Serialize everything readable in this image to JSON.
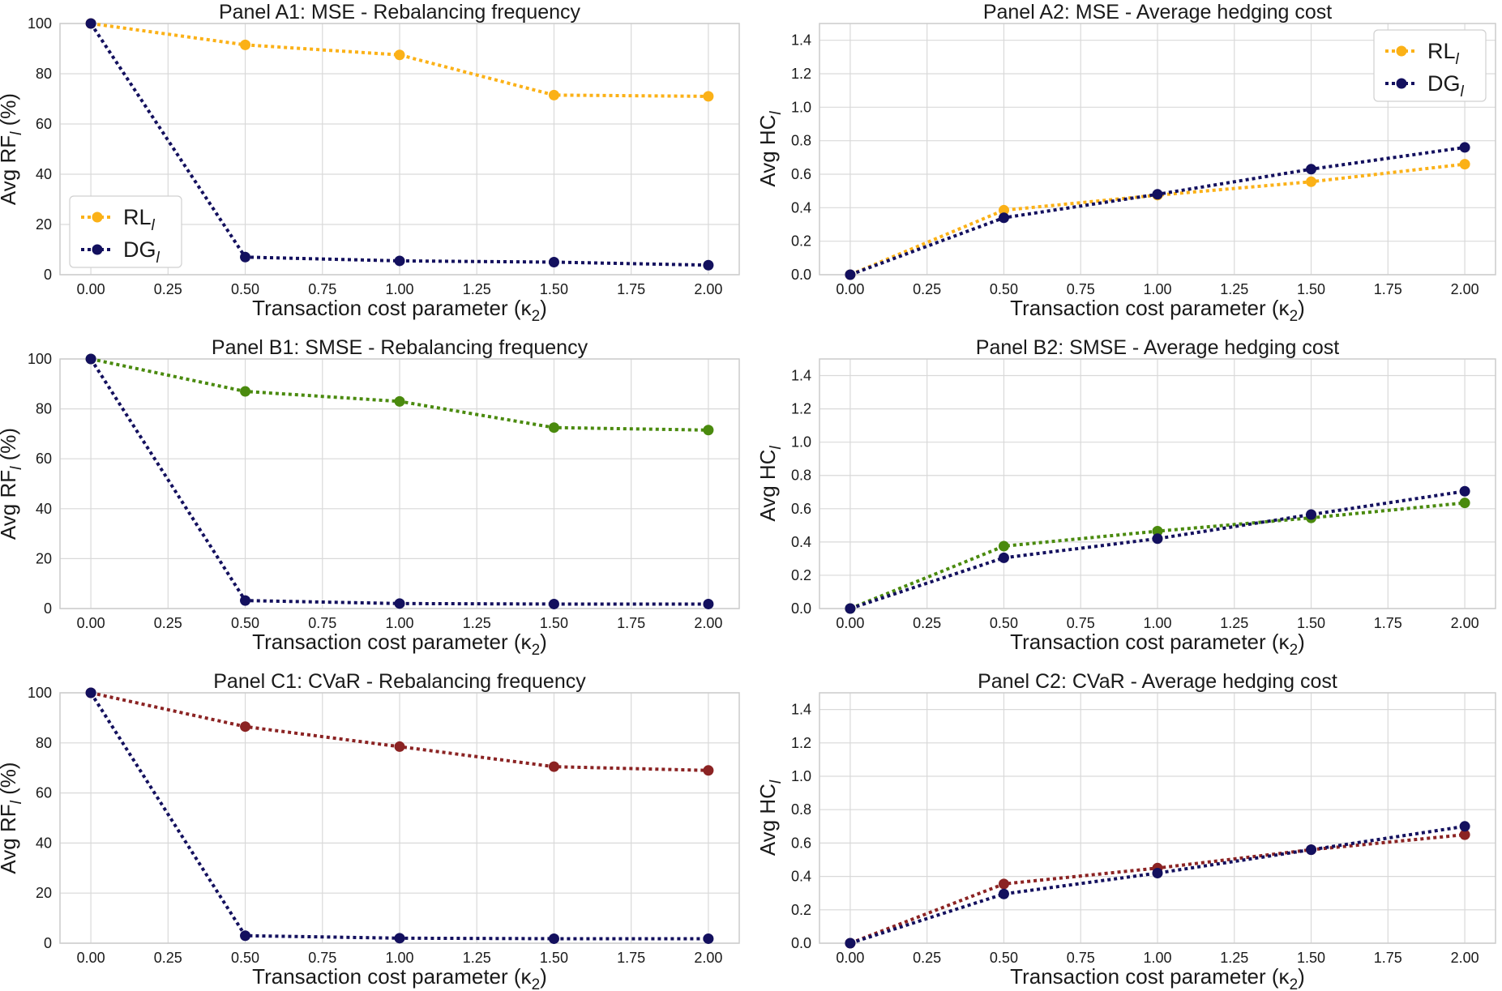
{
  "colors": {
    "rl_mse": "#fbb117",
    "rl_smse": "#4a8a0e",
    "rl_cvar": "#8b2323",
    "dg": "#13105e",
    "grid": "#d9d9d9",
    "frame": "#cccccc"
  },
  "chart_data": [
    {
      "id": "A1",
      "type": "line",
      "title": "Panel A1: MSE - Rebalancing frequency",
      "xlabel": "Transaction cost parameter (κ",
      "xlabel_sub": "2",
      "ylabel": "Avg RF",
      "ylabel_sub": "l",
      "ylabel_suffix": " (%)",
      "xlim": [
        0,
        2
      ],
      "ylim": [
        0,
        100
      ],
      "xticks": [
        "0.00",
        "0.25",
        "0.50",
        "0.75",
        "1.00",
        "1.25",
        "1.50",
        "1.75",
        "2.00"
      ],
      "yticks": [
        "0",
        "20",
        "40",
        "60",
        "80",
        "100"
      ],
      "x": [
        0,
        0.5,
        1.0,
        1.5,
        2.0
      ],
      "series": [
        {
          "name": "RL",
          "sub": "l",
          "color_key": "rl_mse",
          "values": [
            100,
            91.5,
            87.5,
            71.5,
            71
          ]
        },
        {
          "name": "DG",
          "sub": "l",
          "color_key": "dg",
          "values": [
            100,
            7,
            5.5,
            5,
            3.8
          ]
        }
      ],
      "legend": "middle-left"
    },
    {
      "id": "A2",
      "type": "line",
      "title": "Panel A2: MSE - Average hedging cost",
      "xlabel": "Transaction cost parameter (κ",
      "xlabel_sub": "2",
      "ylabel": "Avg HC",
      "ylabel_sub": "l",
      "ylabel_suffix": "",
      "xlim": [
        0,
        2
      ],
      "ylim": [
        0,
        1.5
      ],
      "xticks": [
        "0.00",
        "0.25",
        "0.50",
        "0.75",
        "1.00",
        "1.25",
        "1.50",
        "1.75",
        "2.00"
      ],
      "yticks": [
        "0.0",
        "0.2",
        "0.4",
        "0.6",
        "0.8",
        "1.0",
        "1.2",
        "1.4"
      ],
      "x": [
        0,
        0.5,
        1.0,
        1.5,
        2.0
      ],
      "series": [
        {
          "name": "RL",
          "sub": "l",
          "color_key": "rl_mse",
          "values": [
            0,
            0.385,
            0.475,
            0.555,
            0.66
          ]
        },
        {
          "name": "DG",
          "sub": "l",
          "color_key": "dg",
          "values": [
            0,
            0.34,
            0.48,
            0.63,
            0.76
          ]
        }
      ],
      "legend": "top-right"
    },
    {
      "id": "B1",
      "type": "line",
      "title": "Panel B1: SMSE - Rebalancing frequency",
      "xlabel": "Transaction cost parameter (κ",
      "xlabel_sub": "2",
      "ylabel": "Avg RF",
      "ylabel_sub": "l",
      "ylabel_suffix": " (%)",
      "xlim": [
        0,
        2
      ],
      "ylim": [
        0,
        100
      ],
      "xticks": [
        "0.00",
        "0.25",
        "0.50",
        "0.75",
        "1.00",
        "1.25",
        "1.50",
        "1.75",
        "2.00"
      ],
      "yticks": [
        "0",
        "20",
        "40",
        "60",
        "80",
        "100"
      ],
      "x": [
        0,
        0.5,
        1.0,
        1.5,
        2.0
      ],
      "series": [
        {
          "name": "RL",
          "sub": "l",
          "color_key": "rl_smse",
          "values": [
            100,
            87,
            83,
            72.5,
            71.5
          ]
        },
        {
          "name": "DG",
          "sub": "l",
          "color_key": "dg",
          "values": [
            100,
            3.2,
            2,
            1.8,
            1.8
          ]
        }
      ],
      "legend": "none"
    },
    {
      "id": "B2",
      "type": "line",
      "title": "Panel B2: SMSE - Average hedging cost",
      "xlabel": "Transaction cost parameter (κ",
      "xlabel_sub": "2",
      "ylabel": "Avg HC",
      "ylabel_sub": "l",
      "ylabel_suffix": "",
      "xlim": [
        0,
        2
      ],
      "ylim": [
        0,
        1.5
      ],
      "xticks": [
        "0.00",
        "0.25",
        "0.50",
        "0.75",
        "1.00",
        "1.25",
        "1.50",
        "1.75",
        "2.00"
      ],
      "yticks": [
        "0.0",
        "0.2",
        "0.4",
        "0.6",
        "0.8",
        "1.0",
        "1.2",
        "1.4"
      ],
      "x": [
        0,
        0.5,
        1.0,
        1.5,
        2.0
      ],
      "series": [
        {
          "name": "RL",
          "sub": "l",
          "color_key": "rl_smse",
          "values": [
            0,
            0.375,
            0.465,
            0.545,
            0.635
          ]
        },
        {
          "name": "DG",
          "sub": "l",
          "color_key": "dg",
          "values": [
            0,
            0.305,
            0.42,
            0.565,
            0.705
          ]
        }
      ],
      "legend": "none"
    },
    {
      "id": "C1",
      "type": "line",
      "title": "Panel C1: CVaR - Rebalancing frequency",
      "xlabel": "Transaction cost parameter (κ",
      "xlabel_sub": "2",
      "ylabel": "Avg RF",
      "ylabel_sub": "l",
      "ylabel_suffix": " (%)",
      "xlim": [
        0,
        2
      ],
      "ylim": [
        0,
        100
      ],
      "xticks": [
        "0.00",
        "0.25",
        "0.50",
        "0.75",
        "1.00",
        "1.25",
        "1.50",
        "1.75",
        "2.00"
      ],
      "yticks": [
        "0",
        "20",
        "40",
        "60",
        "80",
        "100"
      ],
      "x": [
        0,
        0.5,
        1.0,
        1.5,
        2.0
      ],
      "series": [
        {
          "name": "RL",
          "sub": "l",
          "color_key": "rl_cvar",
          "values": [
            100,
            86.5,
            78.5,
            70.5,
            69
          ]
        },
        {
          "name": "DG",
          "sub": "l",
          "color_key": "dg",
          "values": [
            100,
            3,
            2,
            1.8,
            1.8
          ]
        }
      ],
      "legend": "none"
    },
    {
      "id": "C2",
      "type": "line",
      "title": "Panel C2: CVaR - Average hedging cost",
      "xlabel": "Transaction cost parameter (κ",
      "xlabel_sub": "2",
      "ylabel": "Avg HC",
      "ylabel_sub": "l",
      "ylabel_suffix": "",
      "xlim": [
        0,
        2
      ],
      "ylim": [
        0,
        1.5
      ],
      "xticks": [
        "0.00",
        "0.25",
        "0.50",
        "0.75",
        "1.00",
        "1.25",
        "1.50",
        "1.75",
        "2.00"
      ],
      "yticks": [
        "0.0",
        "0.2",
        "0.4",
        "0.6",
        "0.8",
        "1.0",
        "1.2",
        "1.4"
      ],
      "x": [
        0,
        0.5,
        1.0,
        1.5,
        2.0
      ],
      "series": [
        {
          "name": "RL",
          "sub": "l",
          "color_key": "rl_cvar",
          "values": [
            0,
            0.355,
            0.45,
            0.56,
            0.65
          ]
        },
        {
          "name": "DG",
          "sub": "l",
          "color_key": "dg",
          "values": [
            0,
            0.295,
            0.42,
            0.56,
            0.7
          ]
        }
      ],
      "legend": "none"
    }
  ]
}
